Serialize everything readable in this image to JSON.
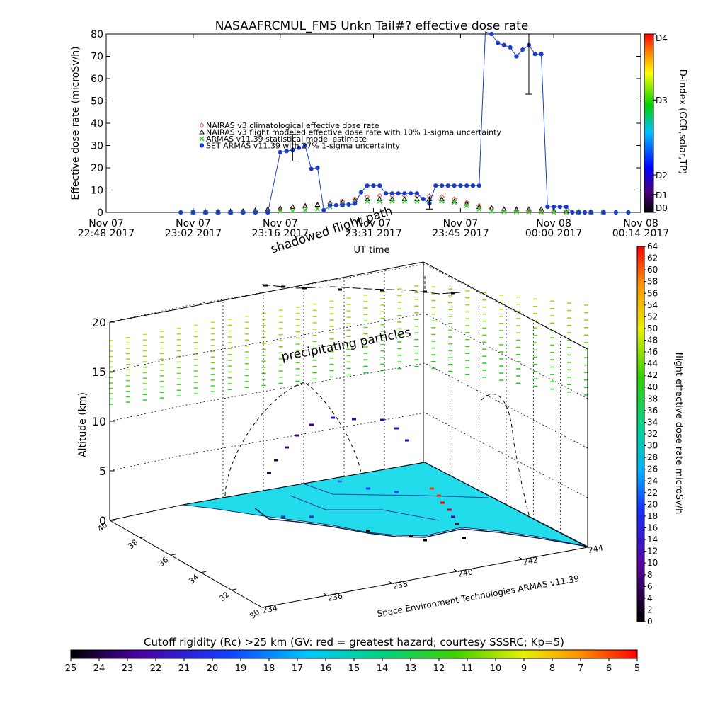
{
  "chart_data": [
    {
      "type": "line",
      "title": "NASAAFRCMUL_FM5 Unkn Tail#? effective dose rate",
      "xlabel": "UT time",
      "ylabel": "Effective dose rate (microSv/h)",
      "ylim": [
        0,
        80
      ],
      "yticks": [
        "0",
        "10",
        "20",
        "30",
        "40",
        "50",
        "60",
        "70",
        "80"
      ],
      "xlim": [
        0,
        86
      ],
      "xticks": [
        {
          "t": 0,
          "line1": "Nov 07",
          "line2": "22:48 2017"
        },
        {
          "t": 14,
          "line1": "Nov 07",
          "line2": "23:02 2017"
        },
        {
          "t": 28,
          "line1": "Nov 07",
          "line2": "23:16 2017"
        },
        {
          "t": 43,
          "line1": "Nov 07",
          "line2": "23:31 2017"
        },
        {
          "t": 57,
          "line1": "Nov 07",
          "line2": "23:45 2017"
        },
        {
          "t": 72,
          "line1": "Nov 08",
          "line2": "00:00 2017"
        },
        {
          "t": 86,
          "line1": "Nov 08",
          "line2": "00:14 2017"
        }
      ],
      "legend": [
        {
          "label": "NAIRAS v3 climatological effective dose rate",
          "color": "#e05050",
          "marker": "diamond"
        },
        {
          "label": "NAIRAS v3 flight modeled effective dose rate with 10% 1-sigma uncertainty",
          "color": "#000000",
          "marker": "triangle"
        },
        {
          "label": "ARMAS v11.39 statistical model estimate",
          "color": "#33cc33",
          "marker": "x"
        },
        {
          "label": "SET ARMAS v11.39 with 27% 1-sigma uncertainty",
          "color": "#1a3cc8",
          "marker": "circle"
        }
      ],
      "series": [
        {
          "name": "SET ARMAS v11.39 with 27% 1-sigma uncertainty",
          "color": "#1a3cc8",
          "x": [
            12,
            14,
            16,
            18,
            20,
            22,
            24,
            26,
            28,
            29,
            30,
            31,
            32,
            33,
            34,
            35,
            36,
            37,
            38,
            39,
            40,
            41,
            42,
            43,
            44,
            45,
            46,
            47,
            48,
            49,
            50,
            51,
            52,
            53,
            54,
            55,
            56,
            57,
            58,
            59,
            60,
            61,
            62,
            63,
            64,
            65,
            66,
            67,
            68,
            69,
            70,
            71,
            72,
            73,
            74,
            75,
            76,
            77,
            78,
            80,
            82,
            84
          ],
          "y": [
            0,
            0,
            0,
            0,
            0,
            0,
            0,
            0,
            27,
            27.5,
            28,
            29,
            30,
            19.5,
            20,
            1,
            3,
            3.2,
            3.3,
            3.5,
            4,
            9,
            12,
            12,
            12,
            8.5,
            8.5,
            8.5,
            8.5,
            8.5,
            8.5,
            6,
            4,
            12,
            12,
            12,
            12,
            12,
            12,
            12,
            12,
            85,
            80,
            76,
            75,
            74,
            70,
            73,
            75,
            71,
            71,
            2.5,
            2.5,
            2.5,
            2.5,
            0,
            0,
            0,
            0,
            0,
            0,
            0
          ]
        },
        {
          "name": "NAIRAS v3 climatological effective dose rate",
          "color": "#e05050",
          "x": [
            14,
            16,
            18,
            20,
            22,
            24,
            26,
            28,
            30,
            32,
            34,
            36,
            38,
            40,
            42,
            44,
            46,
            48,
            50,
            52,
            54,
            56,
            58,
            60,
            62,
            64,
            66,
            68,
            70,
            72,
            74,
            76,
            78,
            80
          ],
          "y": [
            0.3,
            0.3,
            0.3,
            0.4,
            0.5,
            0.6,
            0.8,
            1,
            1.5,
            2.2,
            3,
            4,
            5,
            6,
            7,
            7.5,
            7.5,
            7.5,
            7.4,
            7.3,
            7,
            6,
            4.5,
            3,
            2,
            1.2,
            0.8,
            0.6,
            0.5,
            0.4,
            0.3,
            0.3,
            0.3,
            0.3
          ]
        },
        {
          "name": "NAIRAS v3 flight modeled effective dose rate with 10% 1-sigma uncertainty",
          "color": "#000000",
          "x": [
            14,
            16,
            18,
            20,
            22,
            24,
            26,
            28,
            30,
            32,
            34,
            36,
            38,
            40,
            42,
            44,
            46,
            48,
            50,
            52,
            54,
            56,
            58,
            60,
            62,
            64,
            66,
            68,
            70,
            72,
            74,
            76,
            78,
            80
          ],
          "y": [
            0.2,
            0.3,
            0.4,
            0.5,
            0.6,
            1,
            1.5,
            2,
            2.5,
            3,
            3.5,
            4,
            4.5,
            5.5,
            6,
            6,
            6,
            6,
            6,
            6,
            6,
            5,
            4,
            2.5,
            2,
            1.5,
            1.5,
            1.5,
            1.5,
            1,
            0.5,
            0.3,
            0.2,
            0.2
          ]
        },
        {
          "name": "ARMAS v11.39 statistical model estimate",
          "color": "#33cc33",
          "x": [
            14,
            16,
            18,
            20,
            22,
            24,
            26,
            28,
            30,
            32,
            34,
            36,
            38,
            40,
            42,
            44,
            46,
            48,
            50,
            52,
            54,
            56,
            58,
            60,
            62,
            64,
            66,
            68,
            70,
            72,
            74,
            76,
            78,
            80
          ],
          "y": [
            0.1,
            0.1,
            0.1,
            0.1,
            0.2,
            0.3,
            0.4,
            0.5,
            0.7,
            1,
            1.5,
            2.5,
            3.5,
            4.5,
            5,
            5,
            5,
            5,
            5,
            5,
            5,
            4.5,
            3,
            1.5,
            0.5,
            0.3,
            0.2,
            0.2,
            0.2,
            0.1,
            0.1,
            0.1,
            0.1,
            0.1
          ]
        }
      ],
      "errorbars": [
        {
          "x": 30,
          "ylo": 23,
          "yhi": 35
        },
        {
          "x": 52,
          "ylo": 1.5,
          "yhi": 6.5
        },
        {
          "x": 68,
          "ylo": 53,
          "yhi": 80
        }
      ],
      "colorbar": {
        "label": "D-index (GCR,solar,TP)",
        "ticks": [
          "D4",
          "D3",
          "D2",
          "D1",
          "D0"
        ],
        "levels": [
          0,
          0.37,
          0.79,
          0.9,
          1.0
        ]
      },
      "annotations": [
        "shadowed flight path"
      ]
    },
    {
      "type": "scatter",
      "title": "",
      "ylabel": "Altitude (km)",
      "zlim": [
        0,
        20
      ],
      "zticks": [
        "0",
        "5",
        "10",
        "15",
        "20"
      ],
      "latticks": [
        "40",
        "38",
        "36",
        "34",
        "32",
        "30"
      ],
      "lonticks": [
        "234",
        "236",
        "238",
        "240",
        "242",
        "244"
      ],
      "annotations": [
        "precipitating particles"
      ],
      "credit": "Space Environment Technologies ARMAS v11.39",
      "colorbar": {
        "label": "flight effective dose rate microSv/h",
        "ticks": [
          "0",
          "2",
          "4",
          "6",
          "8",
          "10",
          "12",
          "14",
          "16",
          "18",
          "20",
          "22",
          "24",
          "26",
          "28",
          "30",
          "32",
          "34",
          "36",
          "38",
          "40",
          "42",
          "44",
          "46",
          "48",
          "50",
          "52",
          "54",
          "56",
          "58",
          "60",
          "62",
          "64"
        ]
      }
    },
    {
      "type": "heatmap",
      "title": "Cutoff rigidity (Rc) >25 km (GV: red = greatest hazard; courtesy SSSRC; Kp=5)",
      "ticks": [
        "25",
        "24",
        "23",
        "22",
        "21",
        "20",
        "19",
        "18",
        "17",
        "16",
        "15",
        "14",
        "13",
        "12",
        "11",
        "10",
        "9",
        "8",
        "7",
        "6",
        "5"
      ]
    }
  ]
}
